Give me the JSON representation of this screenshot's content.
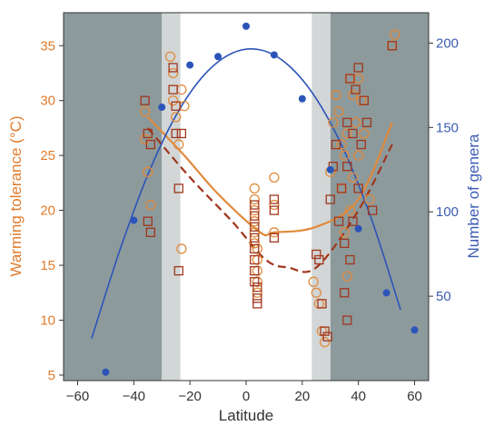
{
  "chart_data": {
    "type": "scatter",
    "xlabel": "Latitude",
    "ylabel_left": "Warming tolerance (°C)",
    "ylabel_right": "Number of genera",
    "xlim": [
      -65,
      65
    ],
    "ylim_left": [
      4.5,
      38
    ],
    "ylim_right": [
      0,
      218
    ],
    "x_ticks": [
      -60,
      -40,
      -20,
      0,
      20,
      40,
      60
    ],
    "y_left_ticks": [
      5,
      10,
      15,
      20,
      25,
      30,
      35
    ],
    "y_right_ticks": [
      50,
      100,
      150,
      200
    ],
    "colors": {
      "left_axis": "#e07b2c",
      "right_axis": "#3c5cb4",
      "orange": "#e08a3c",
      "darkred": "#a0361c",
      "blue": "#2c54b8",
      "dark_band": "#8c9a9c",
      "light_band": "#d2d6d6"
    },
    "bands": {
      "dark": [
        [
          -65,
          -30
        ],
        [
          30,
          65
        ]
      ],
      "light": [
        [
          -30,
          -23.4
        ],
        [
          23.4,
          30
        ]
      ]
    },
    "series": [
      {
        "kind": "line",
        "axis": "left",
        "color": "orange",
        "style": "solid",
        "x": [
          -35,
          -22,
          -10,
          5,
          10,
          25,
          40,
          52
        ],
        "y": [
          28.5,
          25,
          21.5,
          18,
          18,
          18.5,
          21,
          28
        ]
      },
      {
        "kind": "line",
        "axis": "left",
        "color": "darkred",
        "style": "dashed",
        "x": [
          -35,
          -20,
          -5,
          7,
          15,
          25,
          40,
          52
        ],
        "y": [
          27.5,
          23,
          19,
          15.5,
          14.8,
          14.8,
          20,
          26
        ]
      },
      {
        "kind": "line",
        "axis": "right",
        "color": "blue",
        "style": "solid",
        "x": [
          -55,
          -45,
          -35,
          -25,
          -15,
          -5,
          5,
          15,
          25,
          35,
          45,
          55
        ],
        "y": [
          25,
          77,
          122,
          157,
          181,
          194,
          196,
          187,
          167,
          136,
          94,
          42
        ]
      },
      {
        "kind": "points",
        "axis": "right",
        "color": "blue",
        "marker": "dot",
        "x": [
          -50,
          -40,
          -30,
          -20,
          -10,
          0,
          10,
          20,
          30,
          40,
          50,
          60
        ],
        "y": [
          5,
          95,
          162,
          187,
          192,
          210,
          193,
          167,
          125,
          90,
          52,
          30
        ]
      },
      {
        "kind": "points",
        "axis": "left",
        "color": "orange",
        "marker": "circle",
        "x": [
          -36,
          -36,
          -35,
          -34,
          -27,
          -26,
          -26,
          -25,
          -24,
          -23,
          -23,
          -22,
          3,
          3,
          3,
          3,
          3,
          3,
          4,
          4,
          4,
          4,
          4,
          10,
          10,
          10,
          24,
          25,
          26,
          27,
          28,
          30,
          31,
          32,
          33,
          34,
          34,
          35,
          35,
          36,
          36,
          37,
          37,
          38,
          38,
          39,
          40,
          40,
          41,
          42,
          44,
          52,
          53
        ],
        "y": [
          29,
          26.5,
          23.5,
          20.5,
          34,
          32.5,
          30,
          28.5,
          26,
          16.5,
          31,
          29.5,
          22,
          21,
          20,
          19,
          18,
          17,
          16.5,
          15.5,
          14.5,
          13.5,
          12.5,
          23,
          20.5,
          18,
          13.5,
          12.5,
          11.5,
          9,
          8,
          23.5,
          28,
          30.5,
          29,
          26,
          22,
          25,
          18,
          27,
          14,
          32,
          20,
          30.5,
          23,
          28,
          32,
          25,
          30,
          27,
          21,
          35,
          36
        ]
      },
      {
        "kind": "points",
        "axis": "left",
        "color": "darkred",
        "marker": "square",
        "x": [
          -36,
          -35,
          -35,
          -34,
          -34,
          -26,
          -26,
          -25,
          -25,
          -24,
          -24,
          -23,
          3,
          3,
          3,
          3,
          3,
          3,
          3,
          3,
          4,
          4,
          4,
          10,
          10,
          10,
          25,
          26,
          27,
          28,
          29,
          30,
          31,
          32,
          33,
          34,
          35,
          35,
          36,
          36,
          36,
          37,
          37,
          38,
          38,
          39,
          40,
          40,
          41,
          42,
          43,
          45,
          52
        ],
        "y": [
          30,
          27,
          19,
          26,
          18,
          33,
          31,
          29.5,
          27,
          22,
          14.5,
          27,
          20.5,
          19.5,
          18.5,
          17.5,
          16.5,
          15.5,
          14.5,
          13.5,
          13,
          12,
          11.5,
          21,
          20,
          17.5,
          16,
          15.5,
          11.5,
          9,
          8.5,
          21,
          24,
          26,
          19,
          22,
          17,
          12.5,
          28,
          24,
          10,
          32,
          15.5,
          27,
          19,
          31,
          33,
          22,
          26,
          30,
          28,
          20,
          35
        ]
      }
    ]
  }
}
